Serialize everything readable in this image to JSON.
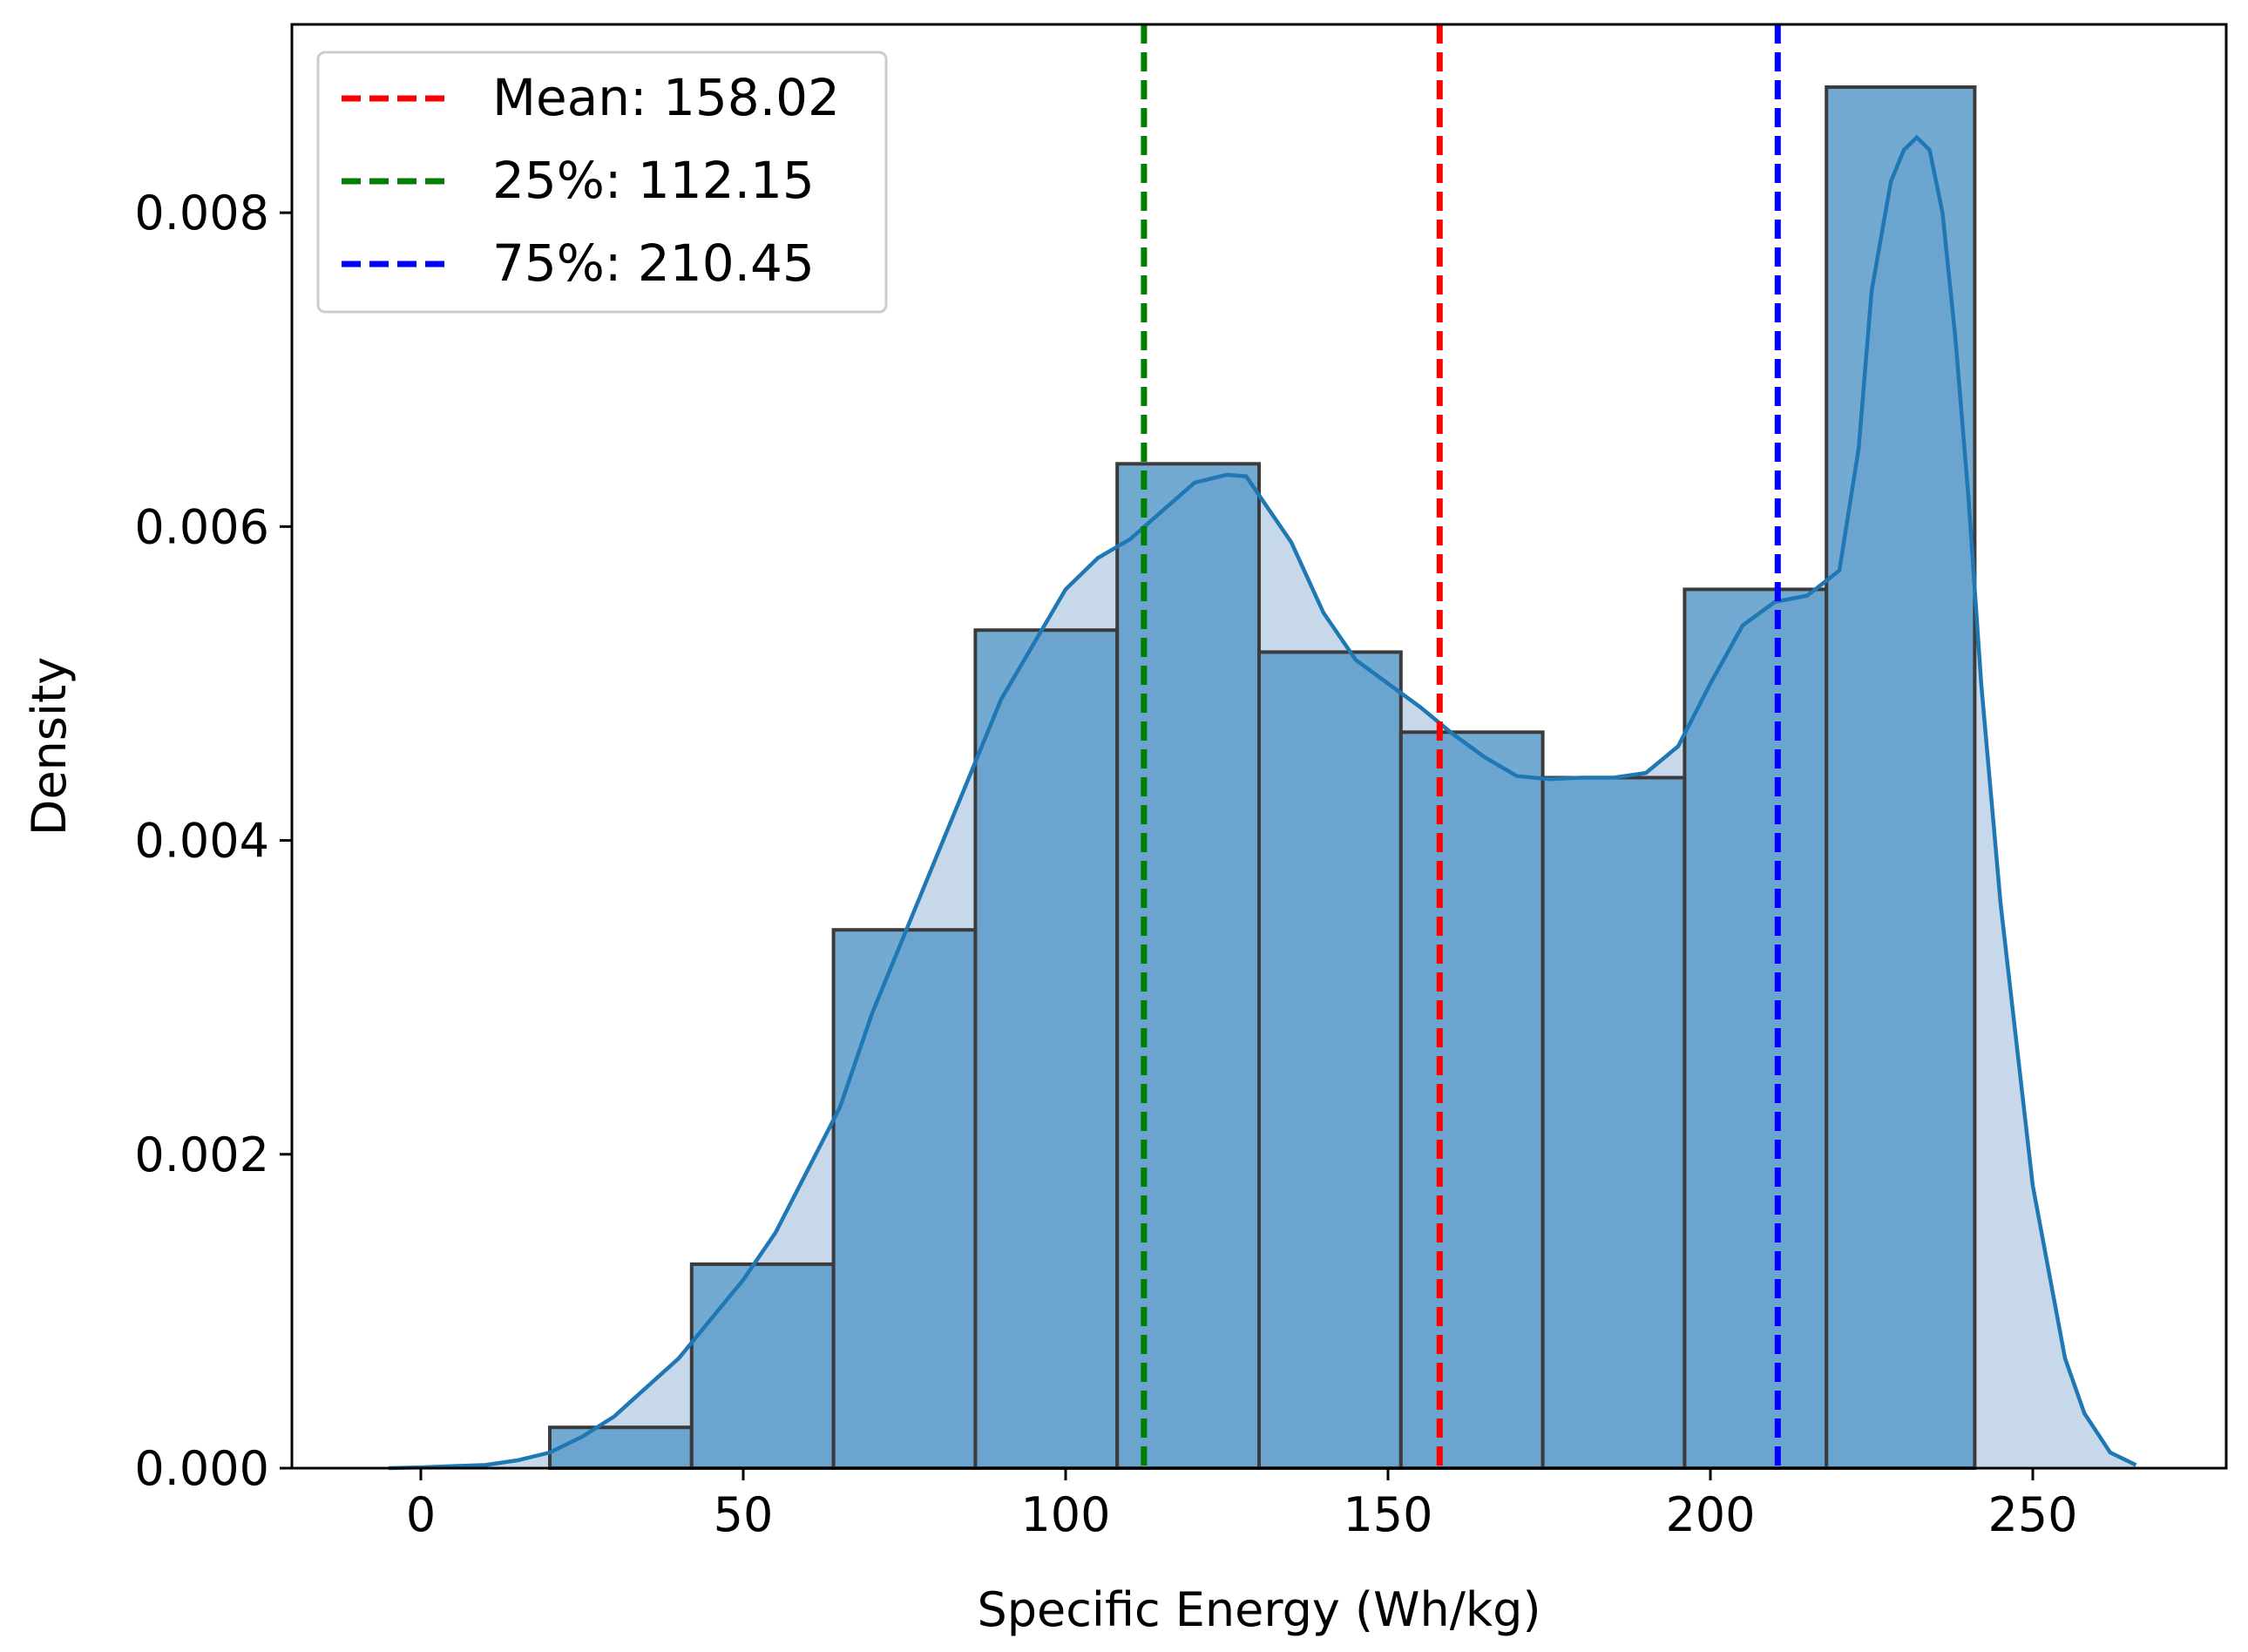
{
  "chart_data": {
    "type": "bar",
    "subtype": "histogram-with-kde",
    "title": "",
    "xlabel": "Specific Energy (Wh/kg)",
    "ylabel": "Density",
    "xlim": [
      -20,
      280
    ],
    "ylim": [
      0,
      0.0092
    ],
    "xticks": [
      0,
      50,
      100,
      150,
      200,
      250
    ],
    "xtick_labels": [
      "0",
      "50",
      "100",
      "150",
      "200",
      "250"
    ],
    "yticks": [
      0,
      0.002,
      0.004,
      0.006,
      0.008
    ],
    "ytick_labels": [
      "0.000",
      "0.002",
      "0.004",
      "0.006",
      "0.008"
    ],
    "grid": false,
    "bins": [
      {
        "x0": 20,
        "x1": 42,
        "value": 0.00026
      },
      {
        "x0": 42,
        "x1": 64,
        "value": 0.0013
      },
      {
        "x0": 64,
        "x1": 86,
        "value": 0.00343
      },
      {
        "x0": 86,
        "x1": 108,
        "value": 0.00534
      },
      {
        "x0": 108,
        "x1": 130,
        "value": 0.0064
      },
      {
        "x0": 130,
        "x1": 152,
        "value": 0.0052
      },
      {
        "x0": 152,
        "x1": 174,
        "value": 0.00469
      },
      {
        "x0": 174,
        "x1": 196,
        "value": 0.0044
      },
      {
        "x0": 196,
        "x1": 218,
        "value": 0.0056
      },
      {
        "x0": 218,
        "x1": 241,
        "value": 0.0088
      }
    ],
    "kde": {
      "x": [
        -5,
        0,
        10,
        15,
        20,
        25,
        30,
        40,
        50,
        55,
        60,
        65,
        70,
        80,
        90,
        100,
        105,
        110,
        115,
        120,
        125,
        128,
        135,
        140,
        145,
        150,
        155,
        160,
        165,
        170,
        175,
        180,
        185,
        190,
        195,
        200,
        205,
        210,
        215,
        220,
        223,
        225,
        228,
        230,
        232,
        234,
        236,
        238,
        240,
        242,
        245,
        250,
        255,
        258,
        262,
        266
      ],
      "y": [
        0,
        5e-06,
        2e-05,
        5e-05,
        0.0001,
        0.0002,
        0.00033,
        0.0007,
        0.0012,
        0.0015,
        0.0019,
        0.0023,
        0.0029,
        0.0039,
        0.0049,
        0.0056,
        0.0058,
        0.00592,
        0.0061,
        0.00628,
        0.00633,
        0.00632,
        0.0059,
        0.00545,
        0.00515,
        0.005,
        0.00485,
        0.00468,
        0.00453,
        0.00441,
        0.00439,
        0.0044,
        0.0044,
        0.00443,
        0.0046,
        0.005,
        0.00537,
        0.00552,
        0.00556,
        0.00572,
        0.0065,
        0.0075,
        0.0082,
        0.0084,
        0.00848,
        0.0084,
        0.008,
        0.0072,
        0.0062,
        0.005,
        0.0036,
        0.0018,
        0.0007,
        0.00035,
        0.0001,
        2e-05
      ]
    },
    "reference_lines": [
      {
        "label": "Mean: 158.02",
        "x": 158.02,
        "color": "#ff0000"
      },
      {
        "label": "25%: 112.15",
        "x": 112.15,
        "color": "#008000"
      },
      {
        "label": "75%: 210.45",
        "x": 210.45,
        "color": "#0000ff"
      }
    ],
    "legend_position": "top-left",
    "colors": {
      "bar_fill": "#5b9bc9",
      "bar_edge": "#3b3b3b",
      "kde_line": "#1f77b4",
      "kde_fill": "#c6d8ea"
    }
  }
}
